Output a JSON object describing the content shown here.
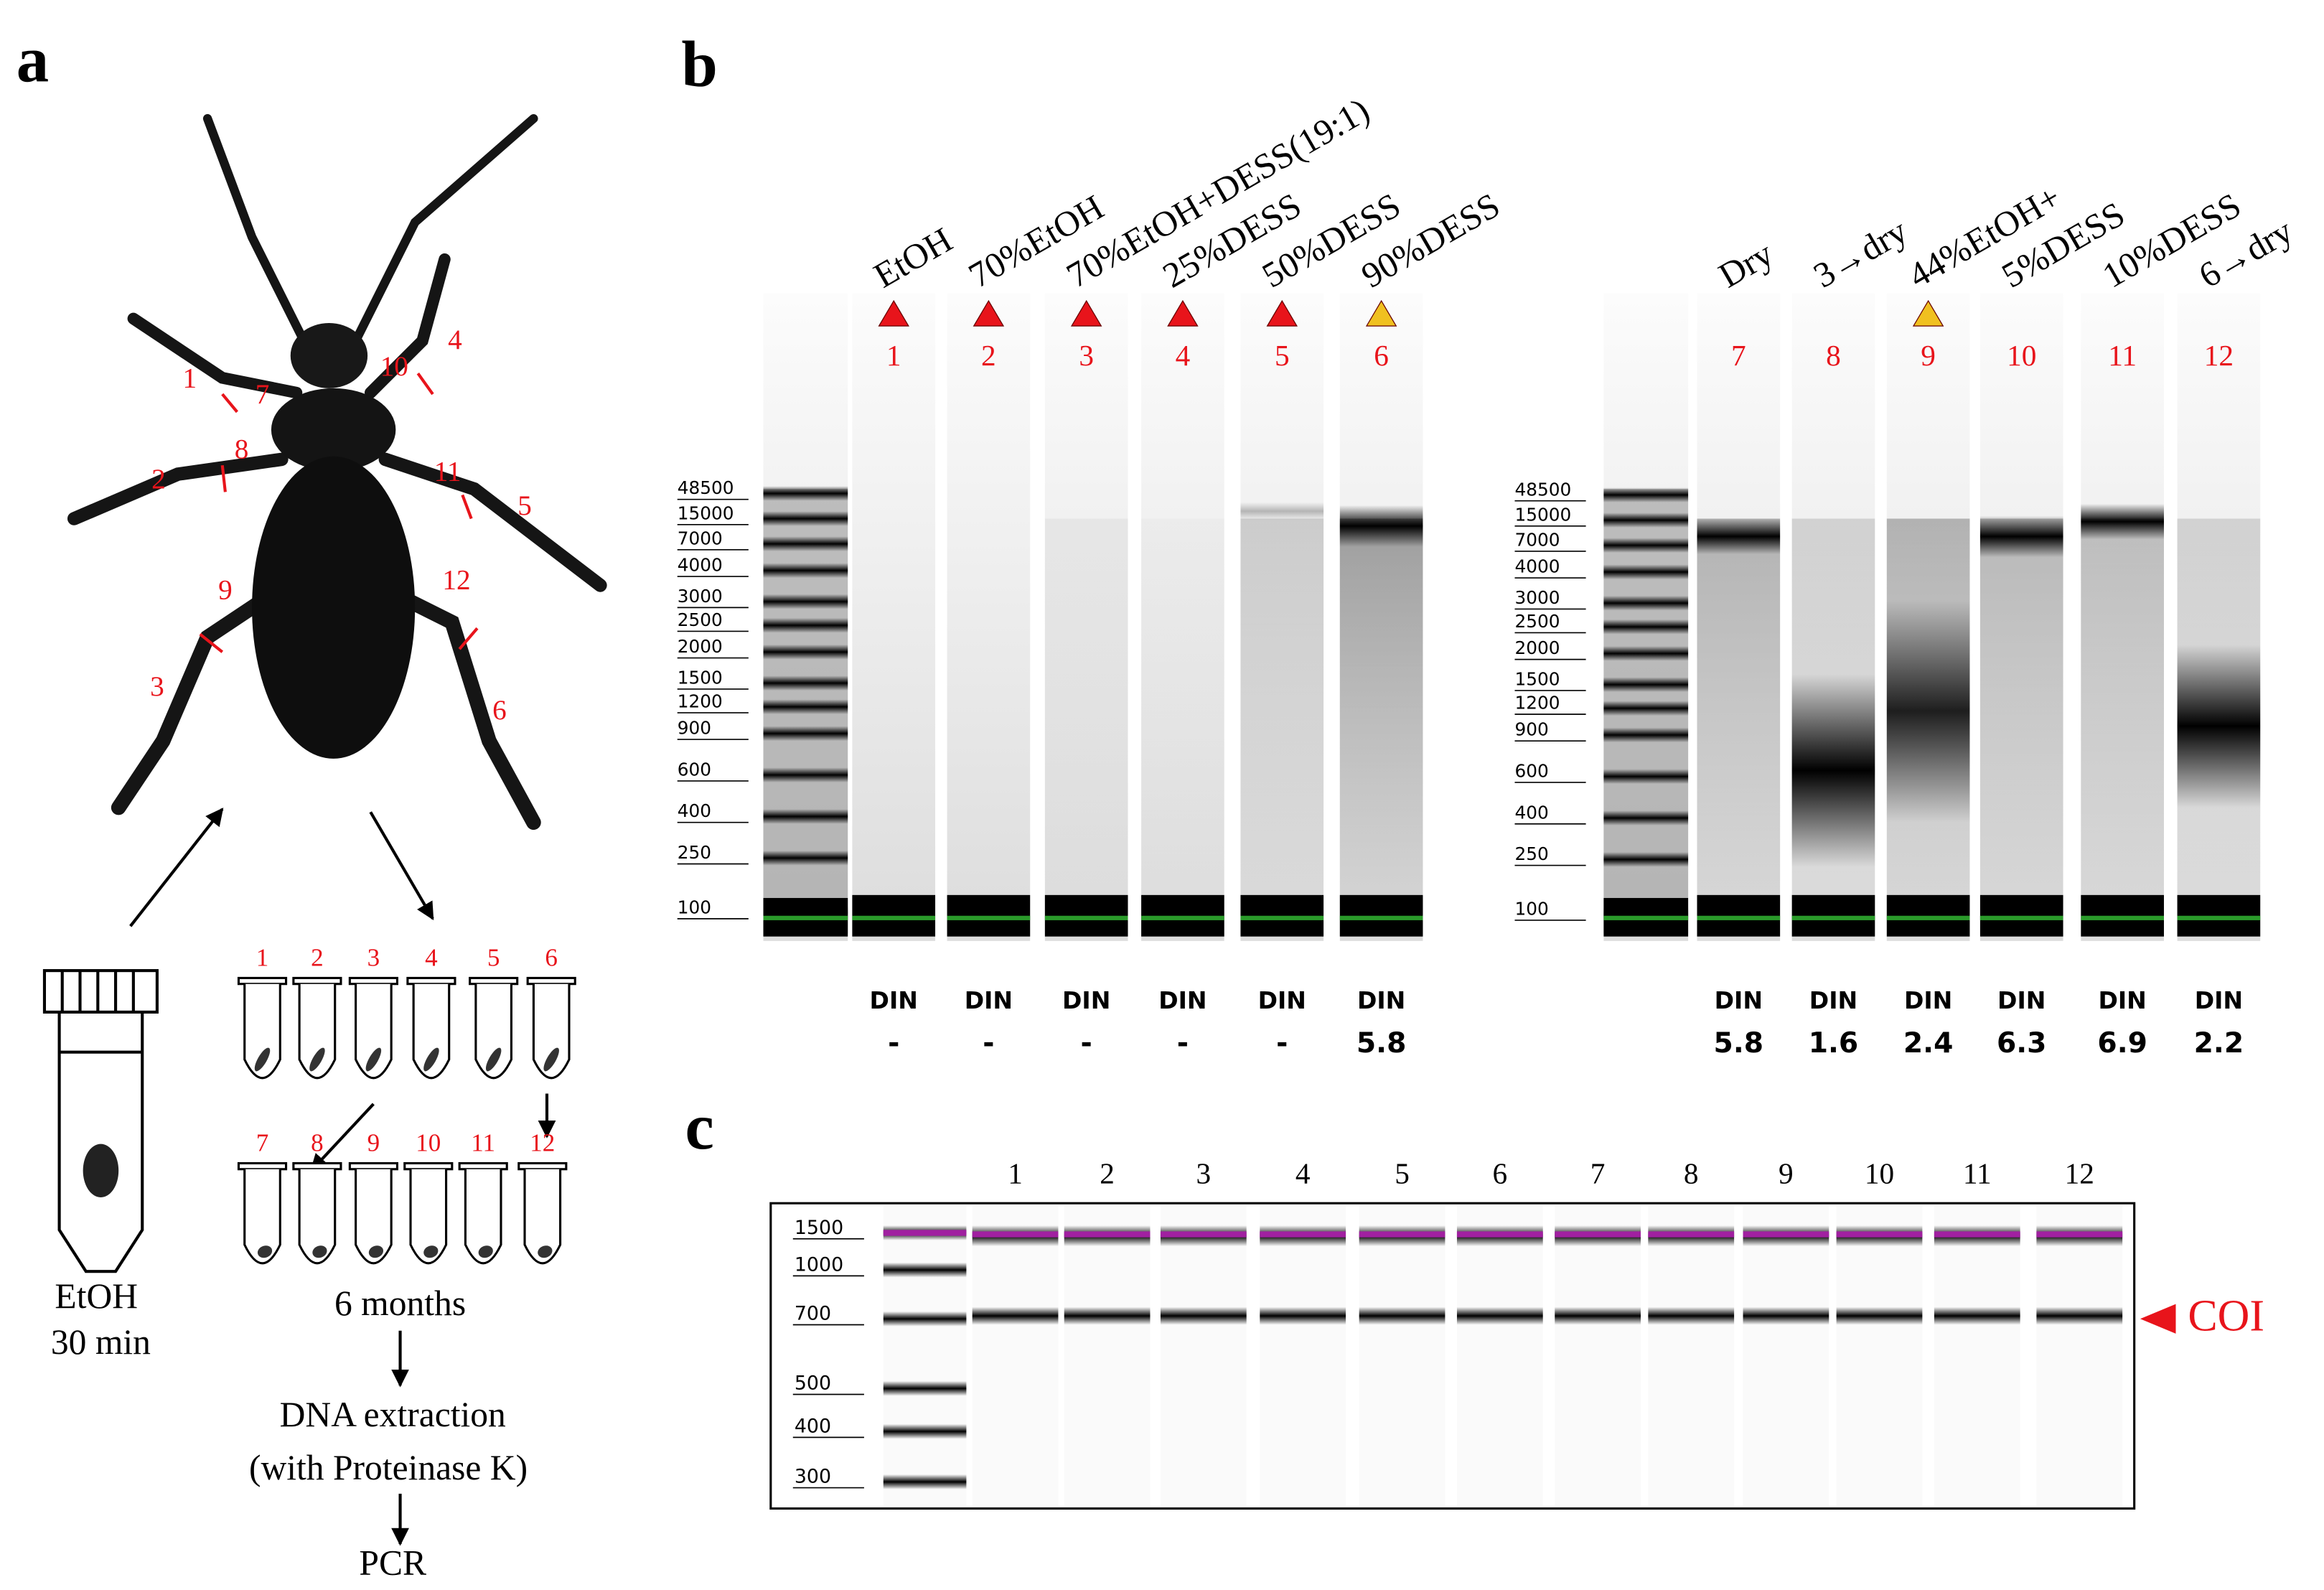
{
  "panel_labels": [
    "a",
    "b",
    "c"
  ],
  "panel_a": {
    "leg_labels": [
      1,
      2,
      3,
      4,
      5,
      6,
      7,
      8,
      9,
      10,
      11,
      12
    ],
    "tube_labels": [
      1,
      2,
      3,
      4,
      5,
      6,
      7,
      8,
      9,
      10,
      11,
      12
    ],
    "vial_caption": [
      "EtOH",
      "30 min"
    ],
    "steps": [
      "6 months",
      "DNA extraction",
      "(with Proteinase K)",
      "PCR"
    ]
  },
  "panel_b": {
    "ladder": [
      48500,
      15000,
      7000,
      4000,
      3000,
      2500,
      2000,
      1500,
      1200,
      900,
      600,
      400,
      250,
      100
    ],
    "lanes": [
      {
        "header": "EtOH",
        "number": 1,
        "warning": "red",
        "din_label": "DIN",
        "din": "-"
      },
      {
        "header": "70%EtOH",
        "number": 2,
        "warning": "red",
        "din_label": "DIN",
        "din": "-"
      },
      {
        "header": "70%EtOH+DESS(19:1)",
        "number": 3,
        "warning": "red",
        "din_label": "DIN",
        "din": "-"
      },
      {
        "header": "25%DESS",
        "number": 4,
        "warning": "red",
        "din_label": "DIN",
        "din": "-"
      },
      {
        "header": "50%DESS",
        "number": 5,
        "warning": "red",
        "din_label": "DIN",
        "din": "-"
      },
      {
        "header": "90%DESS",
        "number": 6,
        "warning": "yellow",
        "din_label": "DIN",
        "din": 5.8
      },
      {
        "header": "Dry",
        "number": 7,
        "warning": null,
        "din_label": "DIN",
        "din": 5.8
      },
      {
        "header": "3→dry",
        "number": 8,
        "warning": null,
        "din_label": "DIN",
        "din": 1.6
      },
      {
        "header": "44%EtOH+",
        "number": 9,
        "warning": "yellow",
        "din_label": "DIN",
        "din": 2.4
      },
      {
        "header": "5%DESS",
        "number": 10,
        "warning": null,
        "din_label": "DIN",
        "din": 6.3
      },
      {
        "header": "10%DESS",
        "number": 11,
        "warning": null,
        "din_label": "DIN",
        "din": 6.9
      },
      {
        "header": "6→dry",
        "number": 12,
        "warning": null,
        "din_label": "DIN",
        "din": 2.2
      }
    ]
  },
  "panel_c": {
    "ladder": [
      1500,
      1000,
      700,
      500,
      400,
      300
    ],
    "lanes": [
      1,
      2,
      3,
      4,
      5,
      6,
      7,
      8,
      9,
      10,
      11,
      12
    ],
    "marker": "COI"
  }
}
